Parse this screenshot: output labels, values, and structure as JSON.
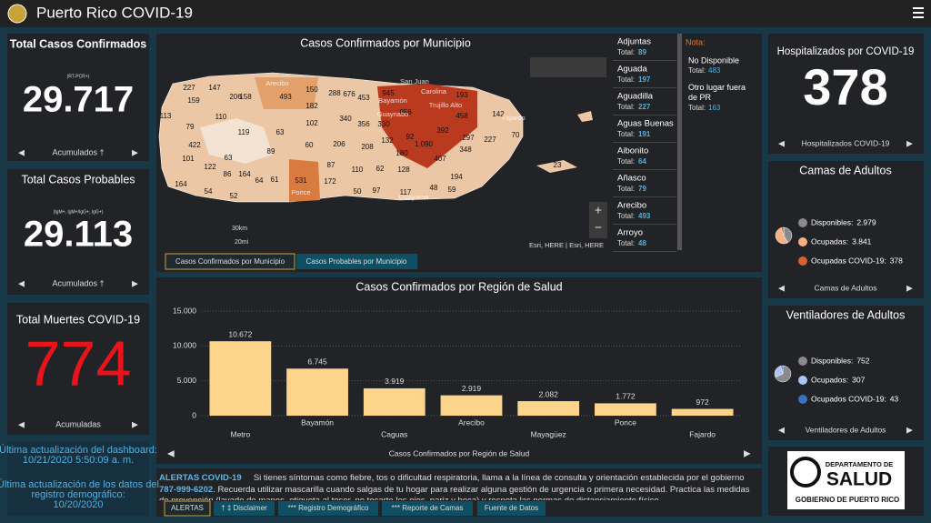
{
  "header": {
    "title": "Puerto Rico COVID-19"
  },
  "confirmed": {
    "title": "Total Casos Confirmados",
    "note": "(RT-PCR+)",
    "value": "29.717",
    "footer": "Acumulados †"
  },
  "probable": {
    "title": "Total Casos Probables",
    "note": "(IgM+, IgM+/IgG+, IgG+)",
    "value": "29.113",
    "footer": "Acumulados †"
  },
  "deaths": {
    "title": "Total Muertes COVID-19",
    "value": "774",
    "footer": "Acumuladas"
  },
  "updates": {
    "dashboard_label": "Última actualización del dashboard:",
    "dashboard_date": "10/21/2020 5:50:09 a. m.",
    "registry_label_1": "Última actualización de los datos del",
    "registry_label_2": "registro demográfico:",
    "registry_date": "10/20/2020"
  },
  "map": {
    "title": "Casos Confirmados por Municipio",
    "tabs": [
      "Casos Confirmados por Municipio",
      "Casos Probables por Municipio"
    ],
    "scale_km": "30km",
    "scale_mi": "20mi",
    "attribution": "Esri, HERE | Esri, HERE",
    "labels": [
      "227",
      "147",
      "206",
      "493",
      "150",
      "288",
      "676",
      "453",
      "945",
      "113",
      "159",
      "110",
      "158",
      "182",
      "340",
      "356",
      "330",
      "856",
      "193",
      "458",
      "142",
      "79",
      "119",
      "63",
      "102",
      "92",
      "392",
      "422",
      "89",
      "60",
      "206",
      "208",
      "132",
      "1.090",
      "227",
      "70",
      "101",
      "63",
      "407",
      "348",
      "297",
      "122",
      "86",
      "164",
      "87",
      "110",
      "62",
      "180",
      "128",
      "23",
      "194",
      "64",
      "61",
      "531",
      "172",
      "50",
      "97",
      "117",
      "48",
      "59",
      "164",
      "54",
      "52"
    ],
    "places": [
      "San Juan",
      "Carolina",
      "Bayamón",
      "Guaynabo",
      "Trujillo Alto",
      "Arecibo",
      "Ponce",
      "Guayama",
      "Fajardo"
    ]
  },
  "municipios": {
    "total_label": "Total:",
    "items": [
      {
        "name": "Adjuntas",
        "total": "89"
      },
      {
        "name": "Aguada",
        "total": "197"
      },
      {
        "name": "Aguadilla",
        "total": "227"
      },
      {
        "name": "Aguas Buenas",
        "total": "191"
      },
      {
        "name": "Aibonito",
        "total": "64"
      },
      {
        "name": "Añasco",
        "total": "79"
      },
      {
        "name": "Arecibo",
        "total": "493"
      },
      {
        "name": "Arroyo",
        "total": "48"
      }
    ]
  },
  "nota": {
    "title": "Nota:",
    "items": [
      {
        "name": "No Disponible",
        "total": "483"
      },
      {
        "name": "Otro lugar fuera de PR",
        "total": "163"
      }
    ]
  },
  "hospital": {
    "title": "Hospitalizados por COVID-19",
    "value": "378",
    "footer": "Hospitalizados COVID-19"
  },
  "beds": {
    "footer": "Camas de Adultos"
  },
  "vents": {
    "footer": "Ventiladores de Adultos"
  },
  "bar_footer": "Casos Confirmados por Región de Salud",
  "alert": {
    "title": "ALERTAS COVID-19",
    "text1": "Si tienes síntomas como fiebre, tos o dificultad respiratoria, llama a la línea de consulta y orientación establecida por el gobierno",
    "phone": "787-999-6202",
    "text2": ". Recuerda utilizar mascarilla cuando salgas de tu hogar para realizar alguna gestión de urgencia o primera necesidad. Practica las medidas de prevención (lavado de manos, etiqueta al toser, no tocarte los ojos, nariz y boca) y respeta las normas de distanciamiento físico."
  },
  "bottom_tabs": [
    "ALERTAS",
    "† ‡ Disclaimer",
    "*** Registro Demográfico",
    "*** Reporte de Camas",
    "Fuente de Datos"
  ],
  "logo": {
    "line1": "DEPARTAMENTO DE",
    "line2": "SALUD",
    "line3": "GOBIERNO DE PUERTO RICO"
  },
  "chart_data": [
    {
      "type": "bar",
      "title": "Casos Confirmados por Región de Salud",
      "categories": [
        "Metro",
        "Bayamón",
        "Caguas",
        "Arecibo",
        "Mayagüez",
        "Ponce",
        "Fajardo"
      ],
      "values": [
        10672,
        6745,
        3919,
        2919,
        2082,
        1772,
        972
      ],
      "value_labels": [
        "10.672",
        "6.745",
        "3.919",
        "2.919",
        "2.082",
        "1.772",
        "972"
      ],
      "color": "#fdd58a",
      "ylim": [
        0,
        15000
      ],
      "yticks": [
        0,
        {
          "value": 5000,
          "label": "5.000"
        },
        {
          "value": 10000,
          "label": "10.000"
        },
        {
          "value": 15000,
          "label": "15.000"
        }
      ],
      "grid": true
    },
    {
      "type": "pie",
      "title": "Camas de Adultos",
      "categories": [
        "Disponibles:",
        "Ocupadas:",
        "Ocupadas COVID-19:"
      ],
      "values": [
        2979,
        3841,
        378
      ],
      "value_labels": [
        "2.979",
        "3.841",
        "378"
      ],
      "colors": [
        "#8a8a8a",
        "#f4b183",
        "#d4622a"
      ]
    },
    {
      "type": "pie",
      "title": "Ventiladores de Adultos",
      "categories": [
        "Disponibles:",
        "Ocupados:",
        "Ocupados COVID-19:"
      ],
      "values": [
        752,
        307,
        43
      ],
      "colors": [
        "#8a8a8a",
        "#a9c4f5",
        "#3a6fc4"
      ]
    }
  ]
}
